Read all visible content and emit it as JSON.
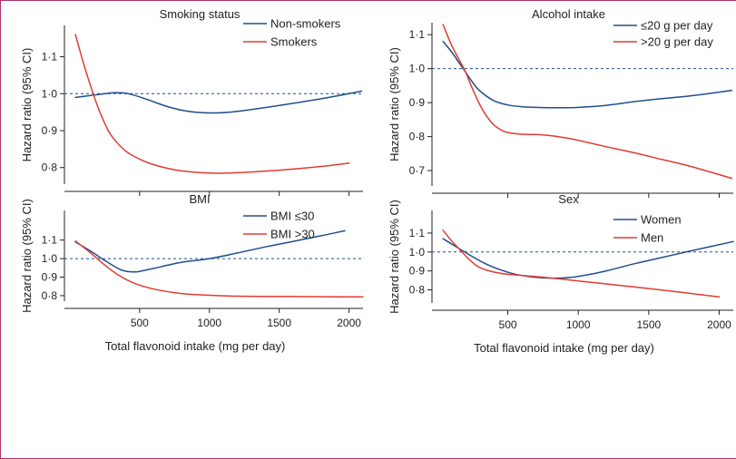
{
  "colors": {
    "series_blue": "#1f4e8c",
    "series_red": "#e03c31",
    "frame": "#b0306a",
    "reference": "#1f4e8c"
  },
  "shared_xlabel": "Total flavonoid intake (mg per day)",
  "shared_ylabel": "Hazard ratio (95% CI)",
  "chart_data": [
    {
      "type": "line",
      "title": "Smoking status",
      "xlabel": "",
      "ylabel": "Hazard ratio (95% CI)",
      "xlim": [
        20,
        2100
      ],
      "ylim": [
        0.76,
        1.18
      ],
      "yticks": [
        0.8,
        0.9,
        1.0,
        1.1
      ],
      "ytick_labels": [
        "0·8",
        "0·9",
        "1·0",
        "1·1"
      ],
      "xticks": [
        500,
        1000,
        1500,
        2000
      ],
      "xtick_labels": [],
      "reference_line": 1.0,
      "legend_position": "top-right",
      "series": [
        {
          "name": "Non-smokers",
          "color": "#1f4e8c",
          "x": [
            40,
            150,
            250,
            330,
            420,
            550,
            700,
            850,
            1000,
            1150,
            1300,
            1500,
            1700,
            1900,
            2090
          ],
          "y": [
            0.99,
            0.995,
            1.0,
            1.003,
            1.0,
            0.985,
            0.965,
            0.952,
            0.948,
            0.95,
            0.957,
            0.968,
            0.98,
            0.993,
            1.007
          ]
        },
        {
          "name": "Smokers",
          "color": "#e03c31",
          "x": [
            40,
            100,
            150,
            200,
            250,
            300,
            400,
            500,
            600,
            700,
            800,
            1000,
            1200,
            1500,
            1800,
            2000
          ],
          "y": [
            1.16,
            1.08,
            1.02,
            0.965,
            0.92,
            0.885,
            0.845,
            0.823,
            0.808,
            0.798,
            0.791,
            0.785,
            0.786,
            0.793,
            0.803,
            0.812
          ]
        }
      ]
    },
    {
      "type": "line",
      "title": "Alcohol intake",
      "xlabel": "",
      "ylabel": "Hazard ratio (95% CI)",
      "xlim": [
        20,
        2100
      ],
      "ylim": [
        0.66,
        1.13
      ],
      "yticks": [
        0.7,
        0.8,
        0.9,
        1.0,
        1.1
      ],
      "ytick_labels": [
        "0·7",
        "0·8",
        "0·9",
        "1·0",
        "1·1"
      ],
      "xticks": [
        500,
        1000,
        1500,
        2000
      ],
      "xtick_labels": [],
      "reference_line": 1.0,
      "legend_position": "top-right",
      "series": [
        {
          "name": "≤20 g per day",
          "color": "#1f4e8c",
          "x": [
            40,
            100,
            150,
            200,
            250,
            300,
            400,
            500,
            600,
            700,
            800,
            900,
            1000,
            1200,
            1400,
            1600,
            1800,
            2090
          ],
          "y": [
            1.08,
            1.05,
            1.02,
            0.99,
            0.96,
            0.935,
            0.906,
            0.893,
            0.888,
            0.886,
            0.885,
            0.885,
            0.886,
            0.892,
            0.903,
            0.912,
            0.92,
            0.936
          ]
        },
        {
          "name": ">20 g per day",
          "color": "#e03c31",
          "x": [
            40,
            100,
            150,
            200,
            250,
            300,
            350,
            400,
            450,
            500,
            600,
            700,
            800,
            900,
            1000,
            1200,
            1400,
            1600,
            1800,
            2090
          ],
          "y": [
            1.13,
            1.07,
            1.03,
            0.99,
            0.94,
            0.895,
            0.86,
            0.835,
            0.82,
            0.812,
            0.807,
            0.806,
            0.803,
            0.797,
            0.789,
            0.77,
            0.752,
            0.732,
            0.712,
            0.677
          ]
        }
      ]
    },
    {
      "type": "line",
      "title": "BMI",
      "xlabel": "Total flavonoid intake (mg per day)",
      "ylabel": "Hazard ratio (95% CI)",
      "xlim": [
        20,
        2100
      ],
      "ylim": [
        0.78,
        1.25
      ],
      "yticks": [
        0.8,
        0.9,
        1.0,
        1.1
      ],
      "ytick_labels": [
        "0·8",
        "0·9",
        "1·0",
        "1·1"
      ],
      "xticks": [
        500,
        1000,
        1500,
        2000
      ],
      "xtick_labels": [
        "500",
        "1000",
        "1500",
        "2000"
      ],
      "reference_line": 1.0,
      "legend_position": "top-right",
      "series": [
        {
          "name": "BMI ≤30",
          "color": "#1f4e8c",
          "x": [
            40,
            150,
            250,
            350,
            400,
            450,
            500,
            600,
            700,
            800,
            1000,
            1200,
            1400,
            1600,
            1800,
            1970
          ],
          "y": [
            1.09,
            1.04,
            0.99,
            0.945,
            0.932,
            0.928,
            0.931,
            0.947,
            0.964,
            0.98,
            1.0,
            1.03,
            1.063,
            1.093,
            1.123,
            1.15
          ]
        },
        {
          "name": "BMI >30",
          "color": "#e03c31",
          "x": [
            40,
            150,
            250,
            350,
            450,
            550,
            650,
            750,
            850,
            1000,
            1200,
            1400,
            1600,
            1800,
            2100
          ],
          "y": [
            1.095,
            1.03,
            0.965,
            0.91,
            0.87,
            0.845,
            0.828,
            0.816,
            0.808,
            0.802,
            0.797,
            0.796,
            0.795,
            0.794,
            0.793
          ]
        }
      ]
    },
    {
      "type": "line",
      "title": "Sex",
      "xlabel": "Total flavonoid intake (mg per day)",
      "ylabel": "Hazard ratio (95% CI)",
      "xlim": [
        20,
        2100
      ],
      "ylim": [
        0.74,
        1.21
      ],
      "yticks": [
        0.8,
        0.9,
        1.0,
        1.1
      ],
      "ytick_labels": [
        "0·8",
        "0·9",
        "1·0",
        "1·1"
      ],
      "xticks": [
        500,
        1000,
        1500,
        2000
      ],
      "xtick_labels": [
        "500",
        "1000",
        "1500",
        "2000"
      ],
      "reference_line": 1.0,
      "legend_position": "top-right",
      "series": [
        {
          "name": "Women",
          "color": "#1f4e8c",
          "x": [
            40,
            150,
            250,
            350,
            450,
            550,
            650,
            750,
            850,
            950,
            1050,
            1200,
            1400,
            1600,
            1800,
            2100
          ],
          "y": [
            1.07,
            1.02,
            0.975,
            0.935,
            0.905,
            0.883,
            0.87,
            0.863,
            0.862,
            0.866,
            0.877,
            0.9,
            0.938,
            0.972,
            1.006,
            1.055
          ]
        },
        {
          "name": "Men",
          "color": "#e03c31",
          "x": [
            40,
            100,
            150,
            200,
            250,
            300,
            400,
            500,
            600,
            700,
            800,
            1000,
            1200,
            1400,
            1600,
            1800,
            2000
          ],
          "y": [
            1.115,
            1.06,
            1.02,
            0.98,
            0.945,
            0.918,
            0.894,
            0.882,
            0.876,
            0.87,
            0.863,
            0.847,
            0.831,
            0.815,
            0.798,
            0.781,
            0.762
          ]
        }
      ]
    }
  ]
}
